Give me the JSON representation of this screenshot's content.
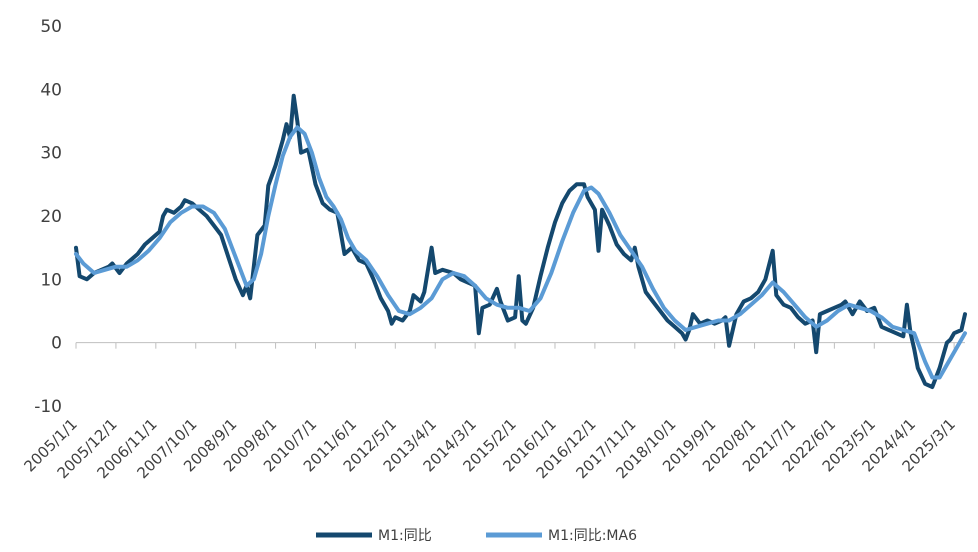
{
  "chart_data": {
    "type": "line",
    "title": "",
    "xlabel": "",
    "ylabel": "",
    "ylim": [
      -10,
      50
    ],
    "yticks": [
      -10,
      0,
      10,
      20,
      30,
      40,
      50
    ],
    "x_range": [
      "2005/1",
      "2025/6"
    ],
    "xtick_labels": [
      "2005/1/1",
      "2005/12/1",
      "2006/11/1",
      "2007/10/1",
      "2008/9/1",
      "2009/8/1",
      "2010/7/1",
      "2011/6/1",
      "2012/5/1",
      "2013/4/1",
      "2014/3/1",
      "2015/2/1",
      "2016/1/1",
      "2016/12/1",
      "2017/11/1",
      "2018/10/1",
      "2019/9/1",
      "2020/8/1",
      "2021/7/1",
      "2022/6/1",
      "2023/5/1",
      "2024/4/1",
      "2025/3/1"
    ],
    "grid": false,
    "legend_position": "bottom",
    "series": [
      {
        "name": "M1:同比",
        "color": "#14486E",
        "points": [
          [
            "2005/1",
            15.0
          ],
          [
            "2005/2",
            10.5
          ],
          [
            "2005/4",
            10.0
          ],
          [
            "2005/6",
            11.0
          ],
          [
            "2005/8",
            11.5
          ],
          [
            "2005/10",
            12.0
          ],
          [
            "2005/11",
            12.5
          ],
          [
            "2006/1",
            11.0
          ],
          [
            "2006/3",
            12.5
          ],
          [
            "2006/6",
            14.0
          ],
          [
            "2006/8",
            15.5
          ],
          [
            "2006/10",
            16.5
          ],
          [
            "2006/12",
            17.5
          ],
          [
            "2007/1",
            20.0
          ],
          [
            "2007/2",
            21.0
          ],
          [
            "2007/4",
            20.5
          ],
          [
            "2007/6",
            21.5
          ],
          [
            "2007/7",
            22.5
          ],
          [
            "2007/9",
            22.0
          ],
          [
            "2007/11",
            21.0
          ],
          [
            "2008/1",
            20.0
          ],
          [
            "2008/3",
            18.5
          ],
          [
            "2008/5",
            17.0
          ],
          [
            "2008/7",
            13.5
          ],
          [
            "2008/9",
            10.0
          ],
          [
            "2008/11",
            7.5
          ],
          [
            "2008/12",
            9.0
          ],
          [
            "2009/1",
            7.0
          ],
          [
            "2009/3",
            17.0
          ],
          [
            "2009/5",
            18.5
          ],
          [
            "2009/6",
            24.8
          ],
          [
            "2009/8",
            28.0
          ],
          [
            "2009/10",
            32.0
          ],
          [
            "2009/11",
            34.5
          ],
          [
            "2009/12",
            32.4
          ],
          [
            "2010/1",
            39.0
          ],
          [
            "2010/2",
            35.0
          ],
          [
            "2010/3",
            30.0
          ],
          [
            "2010/5",
            30.5
          ],
          [
            "2010/7",
            25.0
          ],
          [
            "2010/9",
            22.0
          ],
          [
            "2010/11",
            21.0
          ],
          [
            "2011/1",
            20.5
          ],
          [
            "2011/3",
            14.0
          ],
          [
            "2011/5",
            15.0
          ],
          [
            "2011/7",
            13.0
          ],
          [
            "2011/9",
            12.5
          ],
          [
            "2011/11",
            10.0
          ],
          [
            "2012/1",
            7.0
          ],
          [
            "2012/3",
            5.0
          ],
          [
            "2012/4",
            3.0
          ],
          [
            "2012/5",
            4.0
          ],
          [
            "2012/7",
            3.5
          ],
          [
            "2012/9",
            5.0
          ],
          [
            "2012/10",
            7.5
          ],
          [
            "2012/12",
            6.5
          ],
          [
            "2013/1",
            8.0
          ],
          [
            "2013/3",
            15.0
          ],
          [
            "2013/4",
            11.0
          ],
          [
            "2013/6",
            11.5
          ],
          [
            "2013/9",
            11.0
          ],
          [
            "2013/11",
            10.0
          ],
          [
            "2014/1",
            9.5
          ],
          [
            "2014/3",
            9.0
          ],
          [
            "2014/4",
            1.5
          ],
          [
            "2014/5",
            5.5
          ],
          [
            "2014/7",
            6.0
          ],
          [
            "2014/9",
            8.5
          ],
          [
            "2014/10",
            6.5
          ],
          [
            "2014/12",
            3.5
          ],
          [
            "2015/2",
            4.0
          ],
          [
            "2015/3",
            10.5
          ],
          [
            "2015/4",
            3.5
          ],
          [
            "2015/5",
            3.0
          ],
          [
            "2015/7",
            5.5
          ],
          [
            "2015/9",
            10.5
          ],
          [
            "2015/11",
            15.0
          ],
          [
            "2016/1",
            19.0
          ],
          [
            "2016/3",
            22.0
          ],
          [
            "2016/5",
            24.0
          ],
          [
            "2016/7",
            25.0
          ],
          [
            "2016/9",
            25.0
          ],
          [
            "2016/10",
            23.0
          ],
          [
            "2016/12",
            21.0
          ],
          [
            "2017/1",
            14.5
          ],
          [
            "2017/2",
            21.0
          ],
          [
            "2017/4",
            18.5
          ],
          [
            "2017/6",
            15.5
          ],
          [
            "2017/8",
            14.0
          ],
          [
            "2017/10",
            13.0
          ],
          [
            "2017/11",
            15.0
          ],
          [
            "2017/12",
            12.0
          ],
          [
            "2018/2",
            8.0
          ],
          [
            "2018/4",
            6.5
          ],
          [
            "2018/6",
            5.0
          ],
          [
            "2018/8",
            3.5
          ],
          [
            "2018/10",
            2.5
          ],
          [
            "2018/12",
            1.5
          ],
          [
            "2019/1",
            0.5
          ],
          [
            "2019/2",
            2.0
          ],
          [
            "2019/3",
            4.5
          ],
          [
            "2019/5",
            3.0
          ],
          [
            "2019/7",
            3.5
          ],
          [
            "2019/9",
            3.0
          ],
          [
            "2019/11",
            3.5
          ],
          [
            "2019/12",
            4.0
          ],
          [
            "2020/1",
            -0.5
          ],
          [
            "2020/3",
            4.5
          ],
          [
            "2020/5",
            6.5
          ],
          [
            "2020/7",
            7.0
          ],
          [
            "2020/9",
            8.0
          ],
          [
            "2020/11",
            10.0
          ],
          [
            "2021/1",
            14.5
          ],
          [
            "2021/2",
            7.5
          ],
          [
            "2021/4",
            6.0
          ],
          [
            "2021/6",
            5.5
          ],
          [
            "2021/8",
            4.0
          ],
          [
            "2021/10",
            3.0
          ],
          [
            "2021/12",
            3.5
          ],
          [
            "2022/1",
            -1.5
          ],
          [
            "2022/2",
            4.5
          ],
          [
            "2022/4",
            5.0
          ],
          [
            "2022/6",
            5.5
          ],
          [
            "2022/8",
            6.0
          ],
          [
            "2022/9",
            6.5
          ],
          [
            "2022/11",
            4.5
          ],
          [
            "2023/1",
            6.5
          ],
          [
            "2023/3",
            5.0
          ],
          [
            "2023/5",
            5.5
          ],
          [
            "2023/7",
            2.5
          ],
          [
            "2023/9",
            2.0
          ],
          [
            "2023/11",
            1.5
          ],
          [
            "2024/1",
            1.0
          ],
          [
            "2024/2",
            6.0
          ],
          [
            "2024/3",
            1.5
          ],
          [
            "2024/4",
            -1.0
          ],
          [
            "2024/5",
            -4.0
          ],
          [
            "2024/7",
            -6.5
          ],
          [
            "2024/9",
            -7.0
          ],
          [
            "2024/11",
            -4.0
          ],
          [
            "2025/1",
            0.0
          ],
          [
            "2025/2",
            0.5
          ],
          [
            "2025/3",
            1.5
          ],
          [
            "2025/5",
            2.0
          ],
          [
            "2025/6",
            4.5
          ]
        ]
      },
      {
        "name": "M1:同比:MA6",
        "color": "#5B9BD5",
        "points": [
          [
            "2005/1",
            14.0
          ],
          [
            "2005/3",
            12.5
          ],
          [
            "2005/6",
            11.0
          ],
          [
            "2005/9",
            11.5
          ],
          [
            "2005/12",
            12.0
          ],
          [
            "2006/3",
            12.0
          ],
          [
            "2006/6",
            13.0
          ],
          [
            "2006/9",
            14.5
          ],
          [
            "2006/12",
            16.5
          ],
          [
            "2007/3",
            19.0
          ],
          [
            "2007/6",
            20.5
          ],
          [
            "2007/9",
            21.5
          ],
          [
            "2007/12",
            21.5
          ],
          [
            "2008/3",
            20.5
          ],
          [
            "2008/6",
            18.0
          ],
          [
            "2008/8",
            15.0
          ],
          [
            "2008/10",
            12.0
          ],
          [
            "2008/12",
            9.0
          ],
          [
            "2009/2",
            10.0
          ],
          [
            "2009/4",
            14.0
          ],
          [
            "2009/6",
            20.0
          ],
          [
            "2009/8",
            25.0
          ],
          [
            "2009/10",
            29.5
          ],
          [
            "2009/12",
            32.5
          ],
          [
            "2010/2",
            34.0
          ],
          [
            "2010/4",
            33.0
          ],
          [
            "2010/6",
            30.0
          ],
          [
            "2010/8",
            26.0
          ],
          [
            "2010/10",
            23.0
          ],
          [
            "2010/12",
            21.5
          ],
          [
            "2011/2",
            19.5
          ],
          [
            "2011/4",
            16.5
          ],
          [
            "2011/6",
            14.5
          ],
          [
            "2011/9",
            13.0
          ],
          [
            "2011/12",
            10.5
          ],
          [
            "2012/3",
            7.5
          ],
          [
            "2012/6",
            5.0
          ],
          [
            "2012/9",
            4.5
          ],
          [
            "2012/12",
            5.5
          ],
          [
            "2013/3",
            7.0
          ],
          [
            "2013/6",
            10.0
          ],
          [
            "2013/9",
            11.0
          ],
          [
            "2013/12",
            10.5
          ],
          [
            "2014/3",
            9.0
          ],
          [
            "2014/6",
            7.0
          ],
          [
            "2014/9",
            6.0
          ],
          [
            "2014/12",
            5.5
          ],
          [
            "2015/3",
            5.5
          ],
          [
            "2015/6",
            5.0
          ],
          [
            "2015/9",
            7.0
          ],
          [
            "2015/12",
            11.0
          ],
          [
            "2016/3",
            16.0
          ],
          [
            "2016/6",
            20.5
          ],
          [
            "2016/9",
            24.0
          ],
          [
            "2016/11",
            24.5
          ],
          [
            "2017/1",
            23.5
          ],
          [
            "2017/4",
            20.5
          ],
          [
            "2017/7",
            17.0
          ],
          [
            "2017/10",
            14.5
          ],
          [
            "2018/1",
            12.0
          ],
          [
            "2018/4",
            8.5
          ],
          [
            "2018/7",
            5.5
          ],
          [
            "2018/10",
            3.5
          ],
          [
            "2019/1",
            2.0
          ],
          [
            "2019/4",
            2.5
          ],
          [
            "2019/7",
            3.0
          ],
          [
            "2019/10",
            3.5
          ],
          [
            "2020/1",
            3.5
          ],
          [
            "2020/4",
            4.5
          ],
          [
            "2020/7",
            6.0
          ],
          [
            "2020/10",
            7.5
          ],
          [
            "2021/1",
            9.5
          ],
          [
            "2021/4",
            8.0
          ],
          [
            "2021/7",
            6.0
          ],
          [
            "2021/10",
            4.0
          ],
          [
            "2022/1",
            2.5
          ],
          [
            "2022/4",
            3.5
          ],
          [
            "2022/7",
            5.0
          ],
          [
            "2022/10",
            6.0
          ],
          [
            "2023/1",
            5.5
          ],
          [
            "2023/4",
            5.0
          ],
          [
            "2023/7",
            4.0
          ],
          [
            "2023/10",
            2.5
          ],
          [
            "2024/1",
            2.0
          ],
          [
            "2024/4",
            1.5
          ],
          [
            "2024/7",
            -3.0
          ],
          [
            "2024/9",
            -5.5
          ],
          [
            "2024/11",
            -5.5
          ],
          [
            "2025/2",
            -2.5
          ],
          [
            "2025/6",
            1.5
          ]
        ]
      }
    ]
  }
}
